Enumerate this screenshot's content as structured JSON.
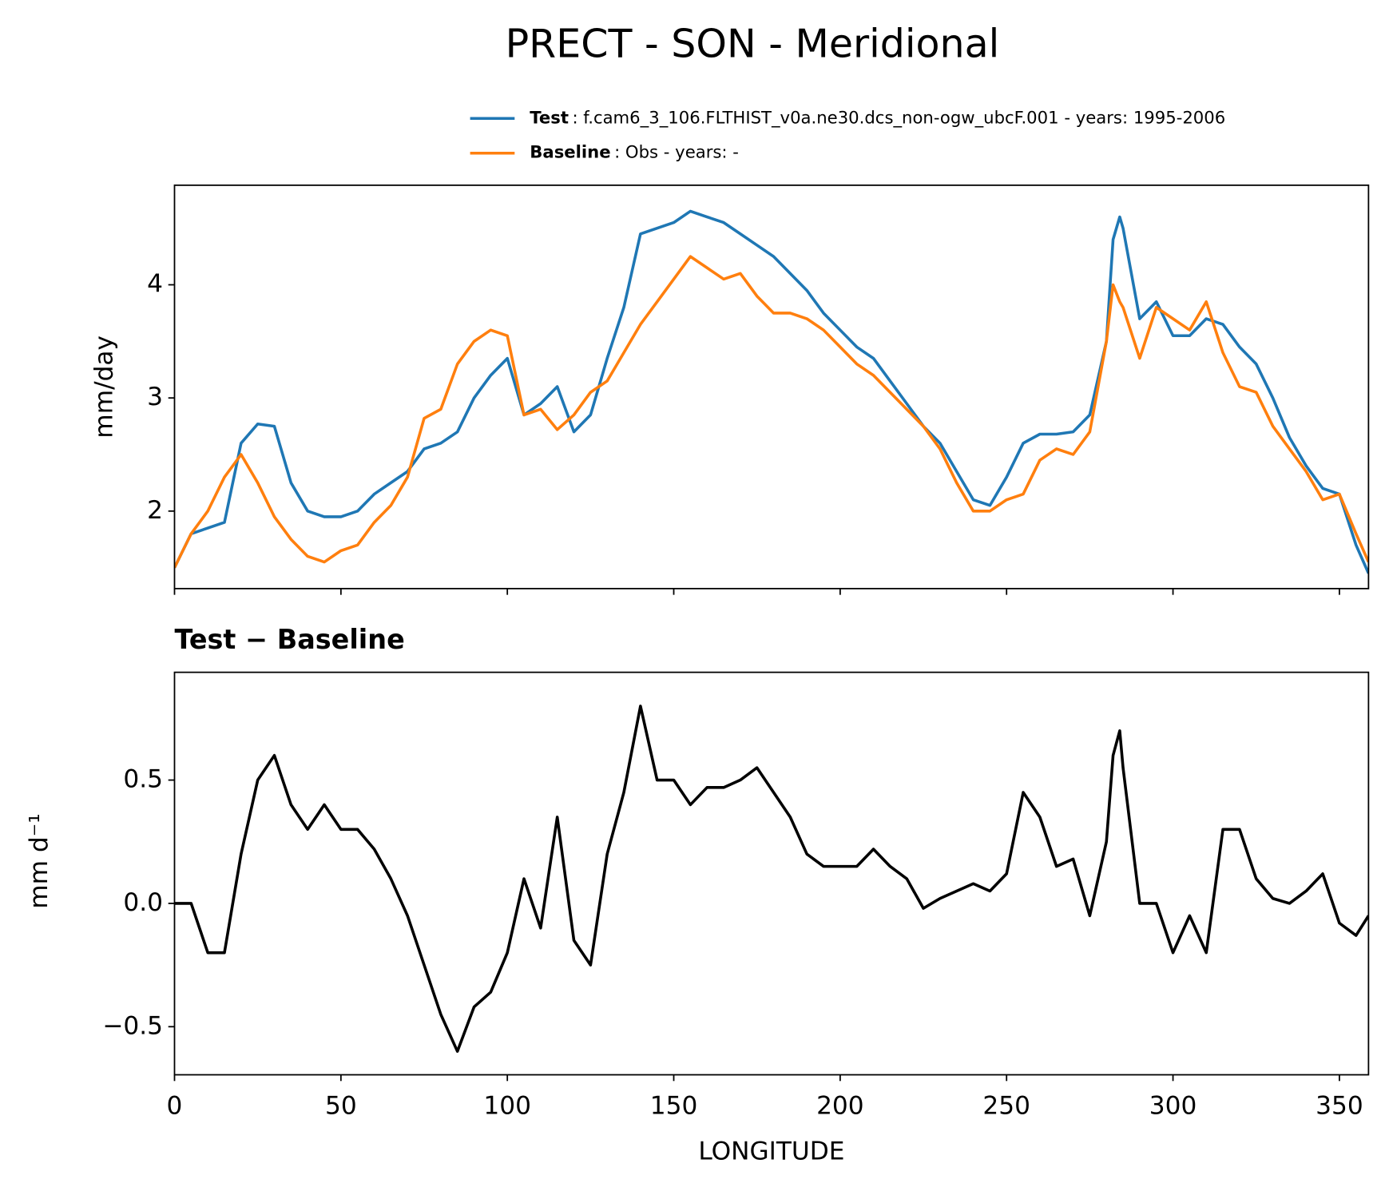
{
  "chart_data": [
    {
      "type": "line",
      "title": "PRECT - SON - Meridional",
      "ylabel": "mm/day",
      "x": [
        0,
        5,
        10,
        15,
        20,
        25,
        30,
        35,
        40,
        45,
        50,
        55,
        60,
        65,
        70,
        75,
        80,
        85,
        90,
        95,
        100,
        105,
        110,
        115,
        120,
        125,
        130,
        135,
        140,
        145,
        150,
        155,
        160,
        165,
        170,
        175,
        180,
        185,
        190,
        195,
        200,
        205,
        210,
        215,
        220,
        225,
        230,
        235,
        240,
        245,
        250,
        255,
        260,
        265,
        270,
        275,
        280,
        282,
        284,
        285,
        290,
        295,
        300,
        305,
        310,
        315,
        320,
        325,
        330,
        335,
        340,
        345,
        350,
        355,
        358.75
      ],
      "series": [
        {
          "name": "Test",
          "description": ": f.cam6_3_106.FLTHIST_v0a.ne30.dcs_non-ogw_ubcF.001 - years: 1995-2006",
          "color": "#1f77b4",
          "values": [
            1.5,
            1.8,
            1.85,
            1.9,
            2.6,
            2.77,
            2.75,
            2.25,
            2.0,
            1.95,
            1.95,
            2.0,
            2.15,
            2.25,
            2.35,
            2.55,
            2.6,
            2.7,
            3.0,
            3.2,
            3.35,
            2.85,
            2.95,
            3.1,
            2.7,
            2.85,
            3.35,
            3.8,
            4.45,
            4.5,
            4.55,
            4.65,
            4.6,
            4.55,
            4.45,
            4.35,
            4.25,
            4.1,
            3.95,
            3.75,
            3.6,
            3.45,
            3.35,
            3.15,
            2.95,
            2.75,
            2.6,
            2.35,
            2.1,
            2.05,
            2.3,
            2.6,
            2.68,
            2.68,
            2.7,
            2.85,
            3.5,
            4.4,
            4.6,
            4.5,
            3.7,
            3.85,
            3.55,
            3.55,
            3.7,
            3.65,
            3.45,
            3.3,
            3.0,
            2.65,
            2.4,
            2.2,
            2.15,
            1.7,
            1.45
          ]
        },
        {
          "name": "Baseline",
          "description": ": Obs - years: -",
          "color": "#ff7f0e",
          "values": [
            1.5,
            1.8,
            2.0,
            2.3,
            2.5,
            2.25,
            1.95,
            1.75,
            1.6,
            1.55,
            1.65,
            1.7,
            1.9,
            2.05,
            2.3,
            2.82,
            2.9,
            3.3,
            3.5,
            3.6,
            3.55,
            2.85,
            2.9,
            2.72,
            2.85,
            3.05,
            3.15,
            3.4,
            3.65,
            3.85,
            4.05,
            4.25,
            4.15,
            4.05,
            4.1,
            3.9,
            3.75,
            3.75,
            3.7,
            3.6,
            3.45,
            3.3,
            3.2,
            3.05,
            2.9,
            2.75,
            2.55,
            2.25,
            2.0,
            2.0,
            2.1,
            2.15,
            2.45,
            2.55,
            2.5,
            2.7,
            3.5,
            4.0,
            3.85,
            3.8,
            3.35,
            3.8,
            3.7,
            3.6,
            3.85,
            3.4,
            3.1,
            3.05,
            2.75,
            2.55,
            2.35,
            2.1,
            2.15,
            1.8,
            1.55
          ]
        }
      ],
      "xlim": [
        0,
        358.75
      ],
      "xticks": [
        0,
        50,
        100,
        150,
        200,
        250,
        300,
        350
      ],
      "ylim": [
        1.315,
        4.88
      ],
      "yticks": [
        2,
        3,
        4
      ]
    },
    {
      "type": "line",
      "title": "Test − Baseline",
      "xlabel": "LONGITUDE",
      "ylabel": "mm d⁻¹",
      "x": [
        0,
        5,
        10,
        15,
        20,
        25,
        30,
        35,
        40,
        45,
        50,
        55,
        60,
        65,
        70,
        75,
        80,
        85,
        90,
        95,
        100,
        105,
        110,
        115,
        120,
        125,
        130,
        135,
        140,
        145,
        150,
        155,
        160,
        165,
        170,
        175,
        180,
        185,
        190,
        195,
        200,
        205,
        210,
        215,
        220,
        225,
        230,
        235,
        240,
        245,
        250,
        255,
        260,
        265,
        270,
        275,
        280,
        282,
        284,
        285,
        290,
        295,
        300,
        305,
        310,
        315,
        320,
        325,
        330,
        335,
        340,
        345,
        350,
        355,
        358.75
      ],
      "series": [
        {
          "color": "#000000",
          "values": [
            0.0,
            0.0,
            -0.2,
            -0.2,
            0.2,
            0.5,
            0.6,
            0.4,
            0.3,
            0.4,
            0.3,
            0.3,
            0.22,
            0.1,
            -0.05,
            -0.25,
            -0.45,
            -0.6,
            -0.42,
            -0.36,
            -0.2,
            0.1,
            -0.1,
            0.35,
            -0.15,
            -0.25,
            0.2,
            0.45,
            0.8,
            0.5,
            0.5,
            0.4,
            0.47,
            0.47,
            0.5,
            0.55,
            0.45,
            0.35,
            0.2,
            0.15,
            0.15,
            0.15,
            0.22,
            0.15,
            0.1,
            -0.02,
            0.02,
            0.05,
            0.08,
            0.05,
            0.12,
            0.45,
            0.35,
            0.15,
            0.18,
            -0.05,
            0.25,
            0.6,
            0.7,
            0.55,
            0.0,
            0.0,
            -0.2,
            -0.05,
            -0.2,
            0.3,
            0.3,
            0.1,
            0.02,
            0.0,
            0.05,
            0.12,
            -0.08,
            -0.13,
            -0.05
          ]
        }
      ],
      "xlim": [
        0,
        358.75
      ],
      "xticks": [
        0,
        50,
        100,
        150,
        200,
        250,
        300,
        350
      ],
      "ylim": [
        -0.695,
        0.937
      ],
      "yticks": [
        {
          "value": -0.5,
          "label": "−0.5"
        },
        {
          "value": 0,
          "label": "0.0"
        },
        0.5
      ]
    }
  ]
}
